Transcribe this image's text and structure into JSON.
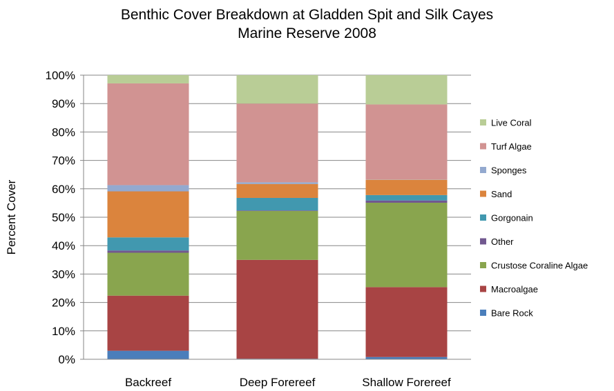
{
  "chart_data": {
    "type": "bar",
    "stacked": true,
    "percent_stacked": true,
    "title_lines": [
      "Benthic Cover Breakdown at Gladden Spit and Silk Cayes",
      "Marine Reserve 2008"
    ],
    "ylabel": "Percent Cover",
    "xlabel": "",
    "categories": [
      "Backreef",
      "Deep Forereef",
      "Shallow Forereef"
    ],
    "y_ticks": [
      "0%",
      "10%",
      "20%",
      "30%",
      "40%",
      "50%",
      "60%",
      "70%",
      "80%",
      "90%",
      "100%"
    ],
    "ylim": [
      0,
      100
    ],
    "grid": true,
    "legend_position": "right",
    "series": [
      {
        "name": "Bare Rock",
        "color": "#4a7ebb",
        "values": [
          3.0,
          0.2,
          0.8
        ]
      },
      {
        "name": "Macroalgae",
        "color": "#a84444",
        "values": [
          19.4,
          34.8,
          24.6
        ]
      },
      {
        "name": "Crustose Coraline Algae",
        "color": "#89a54e",
        "values": [
          15.1,
          17.2,
          29.7
        ]
      },
      {
        "name": "Other",
        "color": "#71588f",
        "values": [
          0.8,
          0.2,
          0.8
        ]
      },
      {
        "name": "Gorgonain",
        "color": "#4198af",
        "values": [
          4.6,
          4.4,
          1.9
        ]
      },
      {
        "name": "Sand",
        "color": "#db843d",
        "values": [
          16.2,
          4.9,
          5.4
        ]
      },
      {
        "name": "Sponges",
        "color": "#93a9cf",
        "values": [
          2.2,
          0.6,
          0.1
        ]
      },
      {
        "name": "Turf Algae",
        "color": "#d19392",
        "values": [
          35.8,
          27.7,
          26.4
        ]
      },
      {
        "name": "Live Coral",
        "color": "#b9cd96",
        "values": [
          2.9,
          10.0,
          10.3
        ]
      }
    ]
  }
}
